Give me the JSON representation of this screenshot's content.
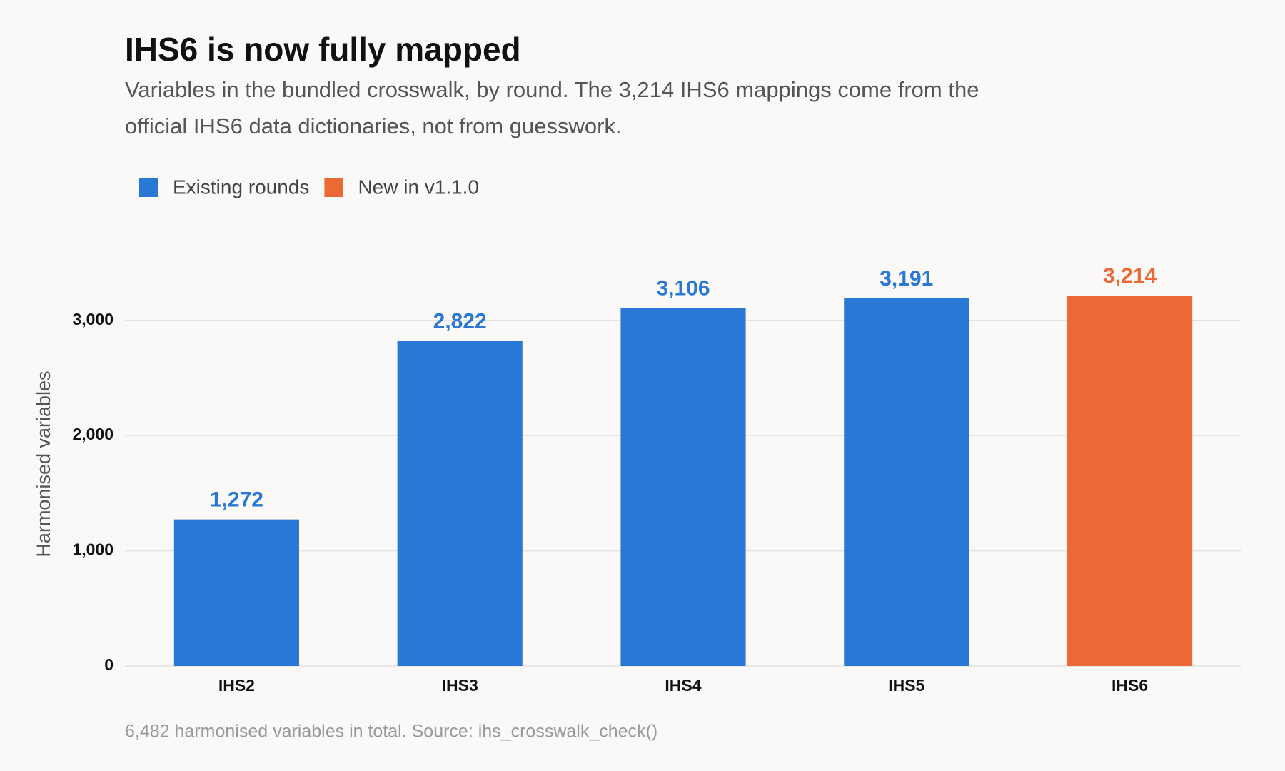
{
  "chart_data": {
    "type": "bar",
    "title": "IHS6 is now fully mapped",
    "subtitle": "Variables in the bundled crosswalk, by round. The 3,214 IHS6 mappings come from the official IHS6 data dictionaries, not from guesswork.",
    "y_label": "Harmonised variables",
    "caption": "6,482 harmonised variables in total. Source: ihs_crosswalk_check()",
    "categories": [
      "IHS2",
      "IHS3",
      "IHS4",
      "IHS5",
      "IHS6"
    ],
    "series": [
      {
        "name": "Existing rounds",
        "color": "#2a78d6",
        "values": [
          1272,
          2822,
          3106,
          3191,
          null
        ],
        "value_labels": [
          "1,272",
          "2,822",
          "3,106",
          "3,191",
          null
        ]
      },
      {
        "name": "New in v1.1.0",
        "color": "#ea6935",
        "values": [
          null,
          null,
          null,
          null,
          3214
        ],
        "value_labels": [
          null,
          null,
          null,
          null,
          "3,214"
        ]
      }
    ],
    "ylim": [
      0,
      3500
    ],
    "yticks": [
      0,
      {
        "value": 1000,
        "label": "1,000"
      },
      {
        "value": 2000,
        "label": "2,000"
      },
      {
        "value": 3000,
        "label": "3,000"
      }
    ],
    "grid": true,
    "legend": "top-left"
  }
}
